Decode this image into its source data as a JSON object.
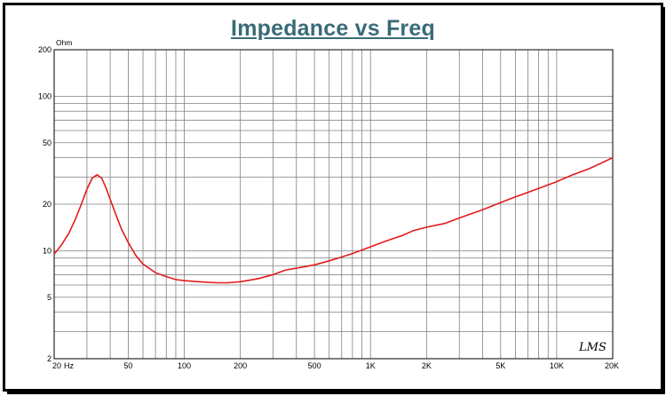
{
  "title": "Impedance vs Freq",
  "signature": "LMS",
  "colors": {
    "curve": "#e41b1b",
    "grid": "#808080",
    "title": "#3a6b78"
  },
  "chart_data": {
    "type": "line",
    "title": "Impedance vs Freq",
    "xscale": "log",
    "yscale": "log",
    "xlim": [
      20,
      20000
    ],
    "ylim": [
      2,
      200
    ],
    "x_unit": "Hz",
    "y_unit": "Ohm",
    "grid": true,
    "x_ticks": [
      {
        "value": 20,
        "label": "20"
      },
      {
        "value": 50,
        "label": "50"
      },
      {
        "value": 100,
        "label": "100"
      },
      {
        "value": 200,
        "label": "200"
      },
      {
        "value": 500,
        "label": "500"
      },
      {
        "value": 1000,
        "label": "1K"
      },
      {
        "value": 2000,
        "label": "2K"
      },
      {
        "value": 5000,
        "label": "5K"
      },
      {
        "value": 10000,
        "label": "10K"
      },
      {
        "value": 20000,
        "label": "20K"
      }
    ],
    "y_ticks": [
      {
        "value": 2,
        "label": "2"
      },
      {
        "value": 5,
        "label": "5"
      },
      {
        "value": 10,
        "label": "10"
      },
      {
        "value": 20,
        "label": "20"
      },
      {
        "value": 50,
        "label": "50"
      },
      {
        "value": 100,
        "label": "100"
      },
      {
        "value": 200,
        "label": "200"
      }
    ],
    "series": [
      {
        "x": [
          20,
          22,
          24,
          26,
          28,
          30,
          32,
          34,
          36,
          38,
          40,
          43,
          46,
          50,
          55,
          60,
          70,
          80,
          90,
          100,
          120,
          150,
          170,
          200,
          250,
          300,
          350,
          400,
          500,
          600,
          700,
          800,
          900,
          1000,
          1200,
          1500,
          1700,
          2000,
          2500,
          3000,
          4000,
          5000,
          6000,
          8000,
          10000,
          12000,
          15000,
          20000
        ],
        "y": [
          9.5,
          11.0,
          13.0,
          16.0,
          20.0,
          25.0,
          29.5,
          31.0,
          29.5,
          25.5,
          21.5,
          17.0,
          13.8,
          11.3,
          9.3,
          8.2,
          7.2,
          6.8,
          6.5,
          6.4,
          6.3,
          6.2,
          6.2,
          6.3,
          6.6,
          7.0,
          7.5,
          7.7,
          8.1,
          8.6,
          9.1,
          9.6,
          10.1,
          10.6,
          11.5,
          12.6,
          13.5,
          14.2,
          15.0,
          16.3,
          18.4,
          20.5,
          22.3,
          25.3,
          28.0,
          30.8,
          34.0,
          40.0
        ]
      }
    ]
  }
}
